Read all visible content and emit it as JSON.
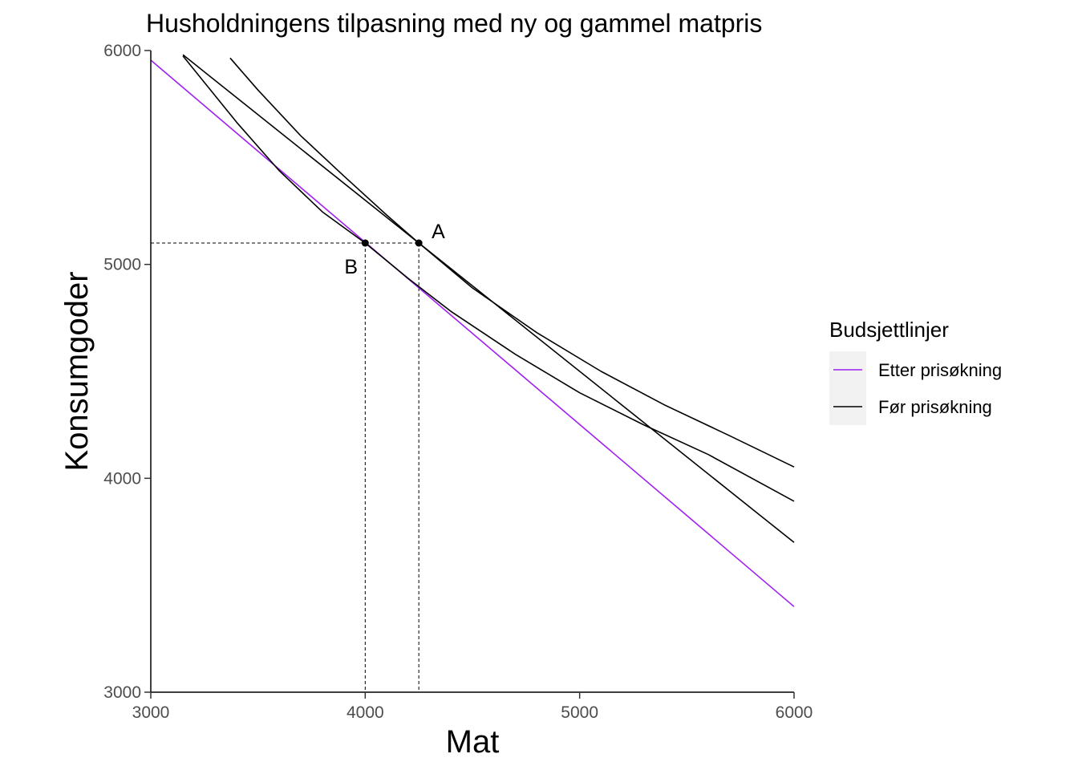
{
  "chart_data": {
    "type": "line",
    "title": "Husholdningens tilpasning med ny og gammel matpris",
    "xlabel": "Mat",
    "ylabel": "Konsumgoder",
    "xlim": [
      3000,
      6000
    ],
    "ylim": [
      3000,
      6000
    ],
    "xticks": [
      3000,
      4000,
      5000,
      6000
    ],
    "yticks": [
      3000,
      4000,
      5000,
      6000
    ],
    "grid": false,
    "legend": {
      "title": "Budsjettlinjer",
      "position": "right",
      "entries": [
        {
          "label": "Etter prisøkning",
          "color": "#a020f0"
        },
        {
          "label": "Før prisøkning",
          "color": "#000000"
        }
      ]
    },
    "series": [
      {
        "name": "Etter prisøkning",
        "color": "#a020f0",
        "kind": "budget-line",
        "x": [
          3000,
          6000
        ],
        "y": [
          5955,
          3400
        ]
      },
      {
        "name": "Før prisøkning",
        "color": "#000000",
        "kind": "budget-line",
        "x": [
          3150,
          4250,
          6000
        ],
        "y": [
          5980,
          5100,
          3700
        ]
      },
      {
        "color": "#000000",
        "kind": "indifference-curve",
        "x": [
          3370,
          3500,
          3700,
          3900,
          4100,
          4250,
          4500,
          4800,
          5100,
          5400,
          5700,
          6000
        ],
        "y": [
          5965,
          5815,
          5601,
          5414,
          5231,
          5100,
          4890,
          4681,
          4500,
          4341,
          4199,
          4053
        ]
      },
      {
        "color": "#000000",
        "kind": "indifference-curve",
        "x": [
          3150,
          3400,
          3600,
          3800,
          4000,
          4200,
          4400,
          4700,
          5000,
          5300,
          5600,
          6000
        ],
        "y": [
          5975,
          5665,
          5437,
          5246,
          5100,
          4935,
          4780,
          4580,
          4400,
          4249,
          4111,
          3893
        ]
      }
    ],
    "points": [
      {
        "label": "A",
        "x": 4250,
        "y": 5100
      },
      {
        "label": "B",
        "x": 4000,
        "y": 5100
      }
    ]
  }
}
